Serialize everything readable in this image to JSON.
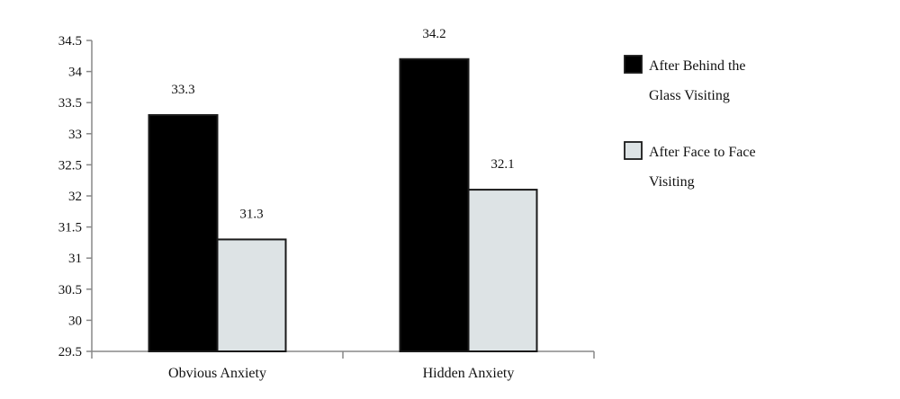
{
  "chart_data": {
    "type": "bar",
    "title": "",
    "xlabel": "",
    "ylabel": "",
    "categories": [
      "Obvious Anxiety",
      "Hidden Anxiety"
    ],
    "series": [
      {
        "name": "After Behind the Glass Visiting",
        "legend_lines": [
          "After Behind the",
          "Glass Visiting"
        ],
        "color": "#000000",
        "values": [
          33.3,
          34.2
        ]
      },
      {
        "name": "After Face to Face Visiting",
        "legend_lines": [
          "After Face to Face",
          "Visiting"
        ],
        "color": "#dde3e5",
        "values": [
          31.3,
          32.1
        ]
      }
    ],
    "ylim": [
      29.5,
      34.5
    ],
    "yticks": [
      "29.5",
      "30",
      "30.5",
      "31",
      "31.5",
      "32",
      "32.5",
      "33",
      "33.5",
      "34",
      "34.5"
    ],
    "grid": false,
    "legend_position": "right"
  }
}
